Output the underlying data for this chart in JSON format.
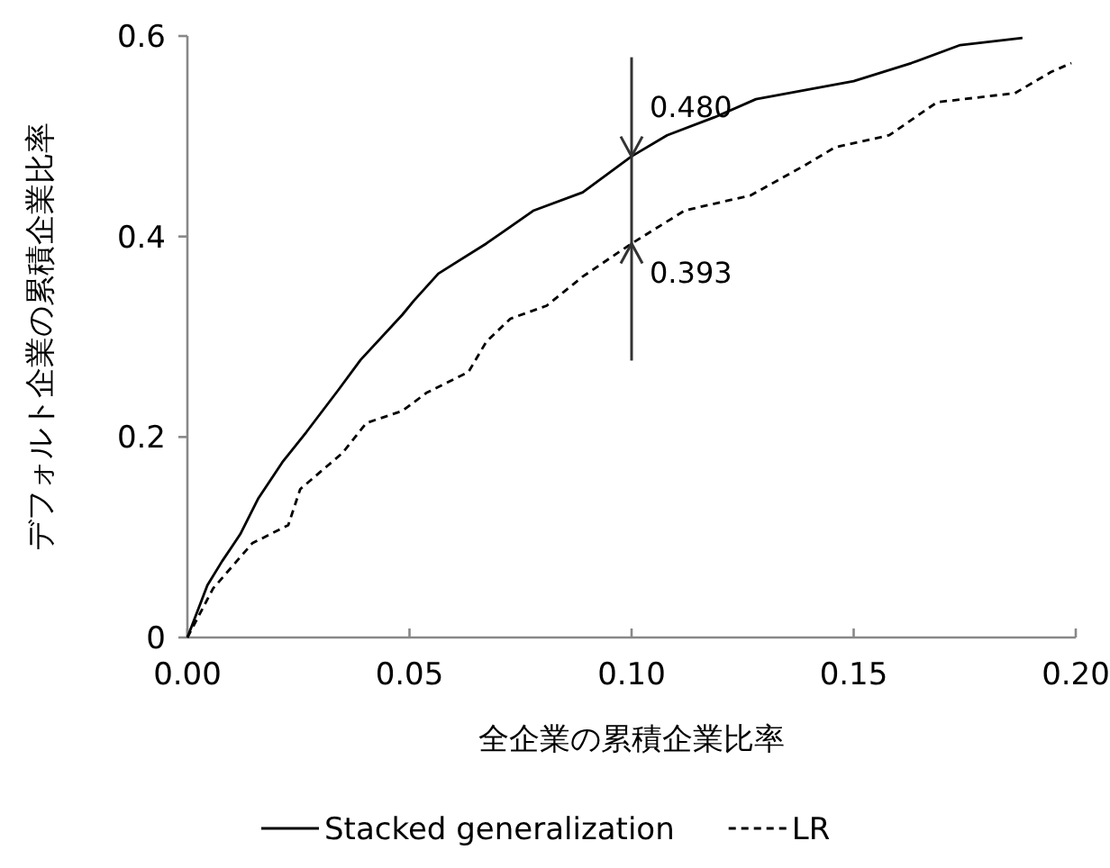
{
  "chart_data": {
    "type": "line",
    "xlabel": "全企業の累積企業比率",
    "ylabel": "デフォルト企業の累積企業比率",
    "xlim": [
      0,
      0.2
    ],
    "ylim": [
      0,
      0.6
    ],
    "xticks": [
      {
        "value": 0,
        "label": "0.00"
      },
      {
        "value": 0.05,
        "label": "0.05"
      },
      {
        "value": 0.1,
        "label": "0.10"
      },
      {
        "value": 0.15,
        "label": "0.15"
      },
      {
        "value": 0.2,
        "label": "0.20"
      }
    ],
    "yticks": [
      0,
      0.2,
      0.4,
      0.6
    ],
    "grid": false,
    "legend": "bottom",
    "series": [
      {
        "name": "Stacked generalization",
        "color": "#000000",
        "line_style": "solid",
        "x": [
          0,
          0.0045,
          0.0078,
          0.0119,
          0.016,
          0.0214,
          0.0268,
          0.034,
          0.039,
          0.0484,
          0.051,
          0.0565,
          0.0673,
          0.078,
          0.089,
          0.1,
          0.108,
          0.1187,
          0.128,
          0.139,
          0.15,
          0.163,
          0.174,
          0.188
        ],
        "values": [
          0,
          0.052,
          0.076,
          0.103,
          0.139,
          0.175,
          0.205,
          0.247,
          0.277,
          0.322,
          0.336,
          0.363,
          0.393,
          0.426,
          0.444,
          0.48,
          0.501,
          0.519,
          0.537,
          0.546,
          0.555,
          0.573,
          0.591,
          0.598
        ]
      },
      {
        "name": "LR",
        "color": "#000000",
        "line_style": "dashed",
        "x": [
          0,
          0.0058,
          0.0146,
          0.0227,
          0.0254,
          0.0349,
          0.0403,
          0.0484,
          0.0538,
          0.0633,
          0.0673,
          0.0727,
          0.0809,
          0.089,
          0.1,
          0.112,
          0.1268,
          0.139,
          0.1458,
          0.158,
          0.1688,
          0.1863,
          0.1944,
          0.199
        ],
        "values": [
          0,
          0.049,
          0.094,
          0.112,
          0.148,
          0.184,
          0.214,
          0.226,
          0.244,
          0.265,
          0.295,
          0.318,
          0.331,
          0.36,
          0.393,
          0.426,
          0.441,
          0.471,
          0.489,
          0.501,
          0.534,
          0.543,
          0.564,
          0.573
        ]
      }
    ],
    "annotations": [
      {
        "text": "0.480",
        "x": 0.1,
        "y": 0.48
      },
      {
        "text": "0.393",
        "x": 0.1,
        "y": 0.393
      }
    ]
  }
}
